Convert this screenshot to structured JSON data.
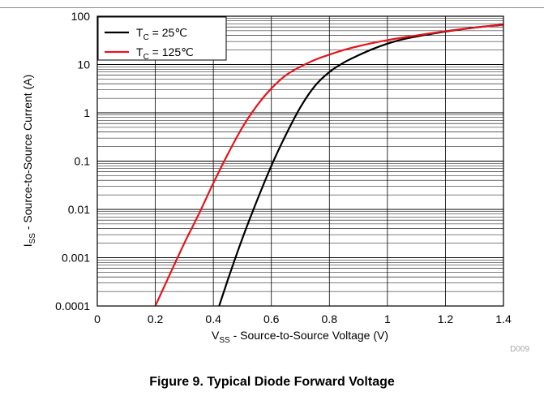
{
  "figure": {
    "caption": "Figure 9. Typical Diode Forward Voltage",
    "code": "D009"
  },
  "chart_data": {
    "type": "line",
    "xlabel": {
      "base": "V",
      "sub": "SS",
      "rest": " - Source-to-Source Voltage (V)"
    },
    "ylabel": {
      "base": "I",
      "sub": "SS",
      "rest": " - Source-to-Source Current (A)"
    },
    "xlim": [
      0,
      1.4
    ],
    "ylim": [
      0.0001,
      100
    ],
    "yscale": "log",
    "grid": true,
    "x_ticks": [
      0,
      0.2,
      0.4,
      0.6,
      0.8,
      1.0,
      1.2,
      1.4
    ],
    "x_tick_labels": [
      "0",
      "0.2",
      "0.4",
      "0.6",
      "0.8",
      "1",
      "1.2",
      "1.4"
    ],
    "y_ticks": [
      0.0001,
      0.001,
      0.01,
      0.1,
      1,
      10,
      100
    ],
    "y_tick_labels": [
      "0.0001",
      "0.001",
      "0.01",
      "0.1",
      "1",
      "10",
      "100"
    ],
    "legend_position": "top-left",
    "series": [
      {
        "name": {
          "base": "T",
          "sub": "C",
          "rest": " = 25℃"
        },
        "color": "#000000",
        "x": [
          0.42,
          0.45,
          0.5,
          0.55,
          0.6,
          0.65,
          0.7,
          0.75,
          0.8,
          0.85,
          0.9,
          0.95,
          1.0,
          1.05,
          1.1,
          1.2,
          1.3,
          1.4
        ],
        "y": [
          0.0001,
          0.00035,
          0.0025,
          0.015,
          0.08,
          0.35,
          1.3,
          3.6,
          7.0,
          11,
          15.5,
          21,
          27,
          33,
          38,
          48,
          58,
          67
        ]
      },
      {
        "name": {
          "base": "T",
          "sub": "C",
          "rest": " = 125℃"
        },
        "color": "#e8141c",
        "x": [
          0.2,
          0.25,
          0.3,
          0.35,
          0.4,
          0.45,
          0.5,
          0.55,
          0.6,
          0.65,
          0.7,
          0.75,
          0.8,
          0.85,
          0.9,
          1.0,
          1.1,
          1.2,
          1.3,
          1.4
        ],
        "y": [
          0.0001,
          0.00045,
          0.002,
          0.008,
          0.035,
          0.14,
          0.5,
          1.4,
          3.2,
          6.0,
          9.0,
          12.5,
          16,
          20,
          24,
          32,
          40,
          49,
          58,
          67
        ]
      }
    ]
  }
}
